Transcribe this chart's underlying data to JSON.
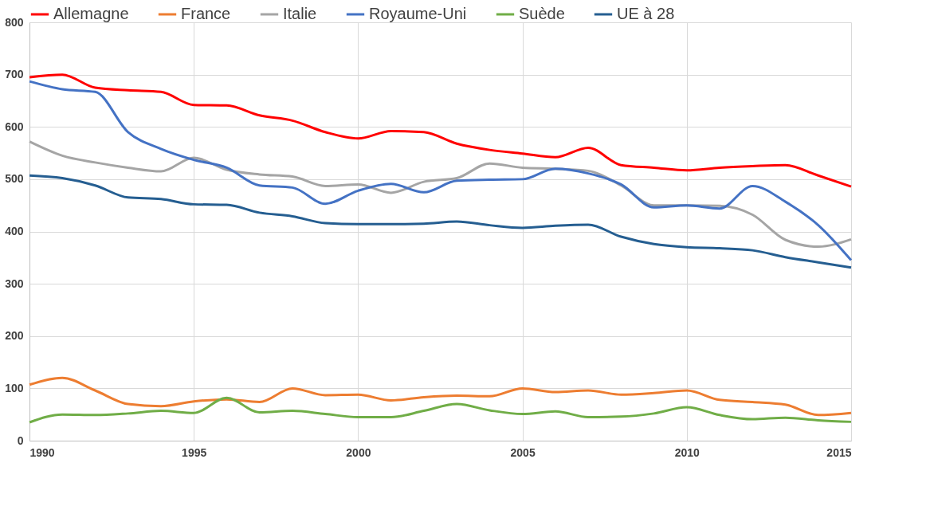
{
  "chart_data": {
    "type": "line",
    "x": [
      1990,
      1991,
      1992,
      1993,
      1994,
      1995,
      1996,
      1997,
      1998,
      1999,
      2000,
      2001,
      2002,
      2003,
      2004,
      2005,
      2006,
      2007,
      2008,
      2009,
      2010,
      2011,
      2012,
      2013,
      2014,
      2015
    ],
    "series": [
      {
        "name": "Allemagne",
        "color": "#ff0000",
        "values": [
          695,
          700,
          675,
          670,
          667,
          642,
          641,
          622,
          612,
          590,
          578,
          592,
          590,
          568,
          556,
          549,
          542,
          560,
          527,
          522,
          517,
          522,
          525,
          527,
          507,
          486
        ]
      },
      {
        "name": "France",
        "color": "#ed7d31",
        "values": [
          107,
          120,
          96,
          70,
          66,
          75,
          79,
          74,
          100,
          87,
          88,
          77,
          83,
          86,
          85,
          100,
          93,
          96,
          88,
          91,
          96,
          78,
          74,
          69,
          49,
          53
        ]
      },
      {
        "name": "Italie",
        "color": "#a5a5a5",
        "values": [
          572,
          545,
          532,
          522,
          515,
          541,
          518,
          509,
          505,
          487,
          490,
          474,
          495,
          502,
          530,
          522,
          520,
          516,
          488,
          450,
          450,
          449,
          432,
          384,
          371,
          385
        ]
      },
      {
        "name": "Royaume-Uni",
        "color": "#4472c4",
        "values": [
          687,
          672,
          667,
          590,
          558,
          537,
          522,
          488,
          484,
          453,
          478,
          491,
          475,
          497,
          499,
          500,
          520,
          511,
          490,
          446,
          450,
          444,
          487,
          457,
          412,
          345
        ]
      },
      {
        "name": "Suède",
        "color": "#70ad47",
        "values": [
          35,
          50,
          49,
          52,
          57,
          53,
          82,
          54,
          57,
          51,
          45,
          45,
          57,
          70,
          58,
          51,
          56,
          45,
          46,
          52,
          64,
          49,
          41,
          44,
          39,
          36
        ]
      },
      {
        "name": "UE à 28",
        "color": "#255e91",
        "values": [
          507,
          502,
          488,
          465,
          462,
          452,
          451,
          436,
          429,
          416,
          414,
          414,
          415,
          419,
          412,
          407,
          411,
          413,
          390,
          376,
          370,
          368,
          364,
          351,
          341,
          331
        ]
      }
    ],
    "xlim": [
      1990,
      2015
    ],
    "xticks": [
      1990,
      1995,
      2000,
      2005,
      2010,
      2015
    ],
    "ylim": [
      0,
      800
    ],
    "yticks": [
      0,
      100,
      200,
      300,
      400,
      500,
      600,
      700,
      800
    ],
    "grid": true,
    "legend": "top",
    "marker": "none",
    "line_style": "solid"
  }
}
